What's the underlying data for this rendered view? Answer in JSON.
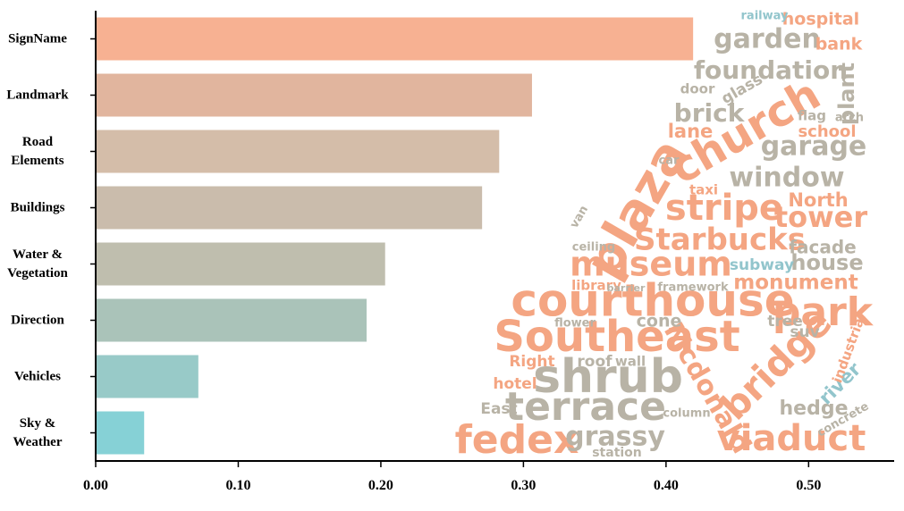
{
  "chart_data": {
    "type": "bar",
    "orientation": "horizontal",
    "categories": [
      "SignName",
      "Landmark",
      "Road\nElements",
      "Buildings",
      "Water &\nVegetation",
      "Direction",
      "Vehicles",
      "Sky &\nWeather"
    ],
    "values": [
      0.419,
      0.306,
      0.283,
      0.271,
      0.203,
      0.19,
      0.072,
      0.034
    ],
    "colors": [
      "#f7b192",
      "#e1b59e",
      "#d4bda9",
      "#cabcac",
      "#bfbeae",
      "#aac3b9",
      "#98cac8",
      "#86d1d6"
    ],
    "xlim": [
      0,
      0.56
    ],
    "xticks": [
      {
        "value": 0,
        "label": "0.00"
      },
      {
        "value": 0.1,
        "label": "0.10"
      },
      {
        "value": 0.2,
        "label": "0.20"
      },
      {
        "value": 0.3,
        "label": "0.30"
      },
      {
        "value": 0.4,
        "label": "0.40"
      },
      {
        "value": 0.5,
        "label": "0.50"
      }
    ],
    "word_cloud": [
      {
        "text": "fedex",
        "color": "#f4a582"
      },
      {
        "text": "terrace",
        "color": "#b8b3a6"
      },
      {
        "text": "shrub",
        "color": "#b8b3a6"
      },
      {
        "text": "Southeast",
        "color": "#f4a582"
      },
      {
        "text": "courthouse",
        "color": "#f4a582"
      },
      {
        "text": "park",
        "color": "#f4a582"
      },
      {
        "text": "museum",
        "color": "#f4a582"
      },
      {
        "text": "Starbucks",
        "color": "#f4a582"
      },
      {
        "text": "stripe",
        "color": "#f4a582"
      },
      {
        "text": "tower",
        "color": "#f4a582"
      },
      {
        "text": "plaza",
        "color": "#f4a582"
      },
      {
        "text": "church",
        "color": "#f4a582"
      },
      {
        "text": "window",
        "color": "#b8b3a6"
      },
      {
        "text": "garage",
        "color": "#b8b3a6"
      },
      {
        "text": "brick",
        "color": "#b8b3a6"
      },
      {
        "text": "foundation",
        "color": "#b8b3a6"
      },
      {
        "text": "garden",
        "color": "#b8b3a6"
      },
      {
        "text": "hospital",
        "color": "#f4a582"
      },
      {
        "text": "bank",
        "color": "#f4a582"
      },
      {
        "text": "viaduct",
        "color": "#f4a582"
      },
      {
        "text": "bridge",
        "color": "#f4a582"
      },
      {
        "text": "Mcdonald",
        "color": "#f4a582"
      },
      {
        "text": "grassy",
        "color": "#b8b3a6"
      },
      {
        "text": "hedge",
        "color": "#b8b3a6"
      },
      {
        "text": "monument",
        "color": "#f4a582"
      },
      {
        "text": "house",
        "color": "#b8b3a6"
      },
      {
        "text": "facade",
        "color": "#b8b3a6"
      },
      {
        "text": "North",
        "color": "#f4a582"
      },
      {
        "text": "subway",
        "color": "#92c5cc"
      },
      {
        "text": "library",
        "color": "#f4a582"
      },
      {
        "text": "lane",
        "color": "#f4a582"
      },
      {
        "text": "school",
        "color": "#f4a582"
      },
      {
        "text": "taxi",
        "color": "#f4a582"
      },
      {
        "text": "cone",
        "color": "#b8b3a6"
      },
      {
        "text": "hotel",
        "color": "#f4a582"
      },
      {
        "text": "Right",
        "color": "#f4a582"
      },
      {
        "text": "roof",
        "color": "#b8b3a6"
      },
      {
        "text": "wall",
        "color": "#b8b3a6"
      },
      {
        "text": "river",
        "color": "#92c5cc"
      },
      {
        "text": "railway",
        "color": "#92c5cc"
      },
      {
        "text": "plant",
        "color": "#b8b3a6"
      },
      {
        "text": "flag",
        "color": "#b8b3a6"
      },
      {
        "text": "door",
        "color": "#b8b3a6"
      },
      {
        "text": "glass",
        "color": "#b8b3a6"
      },
      {
        "text": "framework",
        "color": "#b8b3a6"
      },
      {
        "text": "station",
        "color": "#b8b3a6"
      },
      {
        "text": "East",
        "color": "#b8b3a6"
      },
      {
        "text": "tree",
        "color": "#b8b3a6"
      },
      {
        "text": "suv",
        "color": "#b8b3a6"
      },
      {
        "text": "industrial",
        "color": "#f4a582"
      },
      {
        "text": "column",
        "color": "#b8b3a6"
      },
      {
        "text": "ceiling",
        "color": "#b8b3a6"
      },
      {
        "text": "van",
        "color": "#b8b3a6"
      },
      {
        "text": "barrier",
        "color": "#b8b3a6"
      },
      {
        "text": "flower",
        "color": "#b8b3a6"
      },
      {
        "text": "concrete",
        "color": "#b8b3a6"
      },
      {
        "text": "car",
        "color": "#b8b3a6"
      },
      {
        "text": "arch",
        "color": "#b8b3a6"
      }
    ]
  }
}
